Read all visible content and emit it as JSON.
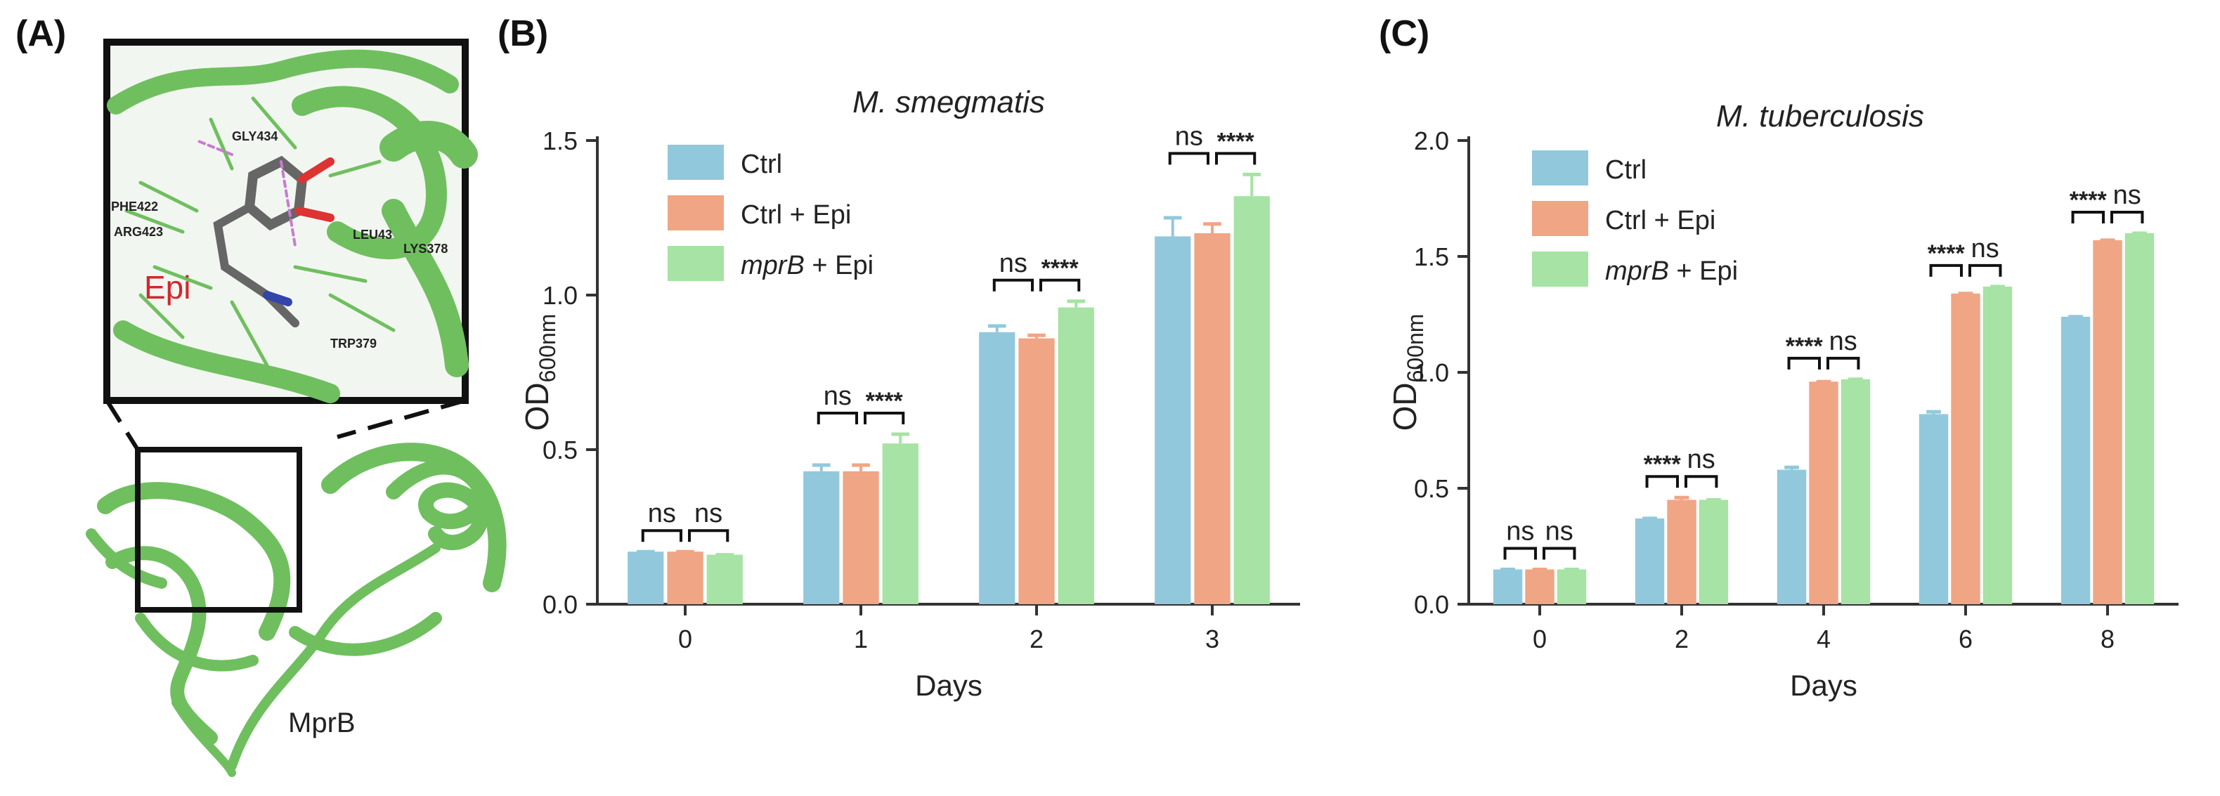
{
  "panels": {
    "a": {
      "label": "(A)",
      "ligand_label": "Epi",
      "protein_label": "MprB",
      "residues": [
        "GLY434",
        "PHE422",
        "ARG423",
        "LEU43",
        "LYS378",
        "TRP379"
      ]
    },
    "b": {
      "label": "(B)"
    },
    "c": {
      "label": "(C)"
    }
  },
  "legend": {
    "items": [
      {
        "key": "ctrl",
        "label_pre": "Ctrl",
        "label_italic": "",
        "label_post": "",
        "color": "#92c8dc"
      },
      {
        "key": "ctrl_epi",
        "label_pre": "Ctrl + Epi",
        "label_italic": "",
        "label_post": "",
        "color": "#f0a584"
      },
      {
        "key": "mprb_epi",
        "label_pre": "",
        "label_italic": "mprB",
        "label_post": " + Epi",
        "color": "#a6e3a4"
      }
    ]
  },
  "colors": {
    "axis": "#333333",
    "protein": "#6fbf5f",
    "ligand_text": "#d3272c"
  },
  "chart_data": [
    {
      "id": "b",
      "type": "bar",
      "title": "M. smegmatis",
      "xlabel": "Days",
      "ylabel_main": "OD",
      "ylabel_sub": "600nm",
      "categories": [
        "0",
        "1",
        "2",
        "3"
      ],
      "ylim": [
        0,
        1.5
      ],
      "yticks": [
        "0.0",
        "0.5",
        "1.0",
        "1.5"
      ],
      "series": [
        {
          "name": "Ctrl",
          "values": [
            0.17,
            0.43,
            0.88,
            1.19
          ],
          "errors": [
            0.0,
            0.02,
            0.02,
            0.06
          ]
        },
        {
          "name": "Ctrl + Epi",
          "values": [
            0.17,
            0.43,
            0.86,
            1.2
          ],
          "errors": [
            0.0,
            0.02,
            0.01,
            0.03
          ]
        },
        {
          "name": "mprB + Epi",
          "values": [
            0.16,
            0.52,
            0.96,
            1.32
          ],
          "errors": [
            0.0,
            0.03,
            0.02,
            0.07
          ]
        }
      ],
      "significance": [
        {
          "group": 0,
          "left": "ns",
          "right": "ns"
        },
        {
          "group": 1,
          "left": "ns",
          "right": "****"
        },
        {
          "group": 2,
          "left": "ns",
          "right": "****"
        },
        {
          "group": 3,
          "left": "ns",
          "right": "****"
        }
      ]
    },
    {
      "id": "c",
      "type": "bar",
      "title": "M. tuberculosis",
      "xlabel": "Days",
      "ylabel_main": "OD",
      "ylabel_sub": "600nm",
      "categories": [
        "0",
        "2",
        "4",
        "6",
        "8"
      ],
      "ylim": [
        0,
        2.0
      ],
      "yticks": [
        "0.0",
        "0.5",
        "1.0",
        "1.5",
        "2.0"
      ],
      "series": [
        {
          "name": "Ctrl",
          "values": [
            0.15,
            0.37,
            0.58,
            0.82,
            1.24
          ],
          "errors": [
            0.0,
            0.0,
            0.01,
            0.01,
            0.0
          ]
        },
        {
          "name": "Ctrl + Epi",
          "values": [
            0.15,
            0.45,
            0.96,
            1.34,
            1.57
          ],
          "errors": [
            0.0,
            0.01,
            0.0,
            0.0,
            0.0
          ]
        },
        {
          "name": "mprB + Epi",
          "values": [
            0.15,
            0.45,
            0.97,
            1.37,
            1.6
          ],
          "errors": [
            0.0,
            0.0,
            0.0,
            0.0,
            0.0
          ]
        }
      ],
      "significance": [
        {
          "group": 0,
          "left": "ns",
          "right": "ns"
        },
        {
          "group": 1,
          "left": "****",
          "right": "ns"
        },
        {
          "group": 2,
          "left": "****",
          "right": "ns"
        },
        {
          "group": 3,
          "left": "****",
          "right": "ns"
        },
        {
          "group": 4,
          "left": "****",
          "right": "ns"
        }
      ]
    }
  ]
}
